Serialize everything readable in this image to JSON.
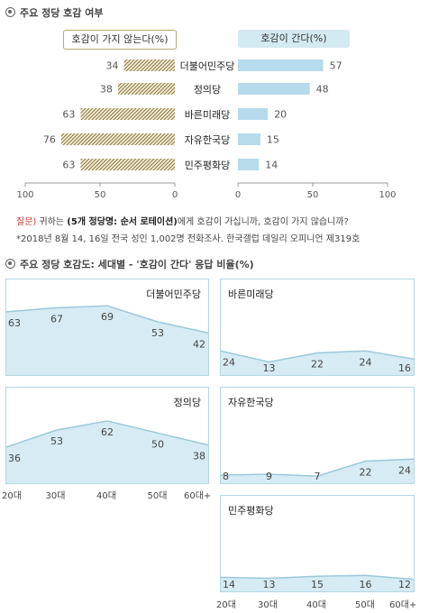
{
  "section1_title": "주요 정당 호감 여부",
  "section2_title": "주요 정당 호감도: 세대별 - '호감이 간다' 응답 비율(%)",
  "legend_left": "호감이 가지 않는다(%)",
  "legend_right": "호감이 간다(%)",
  "note_question_tag": "질문)",
  "note_question_pre": "귀하는",
  "note_question_bold": "(5개 정당명: 순서 로테이션)",
  "note_question_post": "에게 호감이 가십니까, 호감이 가지 않습니까?",
  "note_source": "*2018년 8월 14, 16일 전국 성인 1,002명 전화조사. 한국갤럽 데일리 오피니언 제319호",
  "colors": {
    "favorable": "#b6dbea",
    "unfavorable_hatch": "#8c7a46",
    "area_fill": "#d6ebf3",
    "area_line": "#9cc8da",
    "panel_border": "#b5d6e3"
  },
  "chart_data": [
    {
      "type": "bar",
      "categories": [
        "더불어민주당",
        "정의당",
        "바른미래당",
        "자유한국당",
        "민주평화당"
      ],
      "series": [
        {
          "name": "호감이 가지 않는다(%)",
          "values": [
            34,
            38,
            63,
            76,
            63
          ]
        },
        {
          "name": "호감이 간다(%)",
          "values": [
            57,
            48,
            20,
            15,
            14
          ]
        }
      ],
      "left_axis_ticks": [
        "100",
        "50",
        "0"
      ],
      "right_axis_ticks": [
        "0",
        "50",
        "100"
      ],
      "xlim": [
        0,
        100
      ]
    },
    {
      "type": "area",
      "x": [
        "20대",
        "30대",
        "40대",
        "50대",
        "60대+"
      ],
      "ylim": [
        0,
        100
      ],
      "panels": [
        {
          "name": "더불어민주당",
          "values": [
            63,
            67,
            69,
            53,
            42
          ]
        },
        {
          "name": "바른미래당",
          "values": [
            24,
            13,
            22,
            24,
            16
          ]
        },
        {
          "name": "정의당",
          "values": [
            36,
            53,
            62,
            50,
            38
          ]
        },
        {
          "name": "자유한국당",
          "values": [
            8,
            9,
            7,
            22,
            24
          ]
        },
        {
          "name": "민주평화당",
          "values": [
            14,
            13,
            15,
            16,
            12
          ]
        }
      ]
    }
  ]
}
